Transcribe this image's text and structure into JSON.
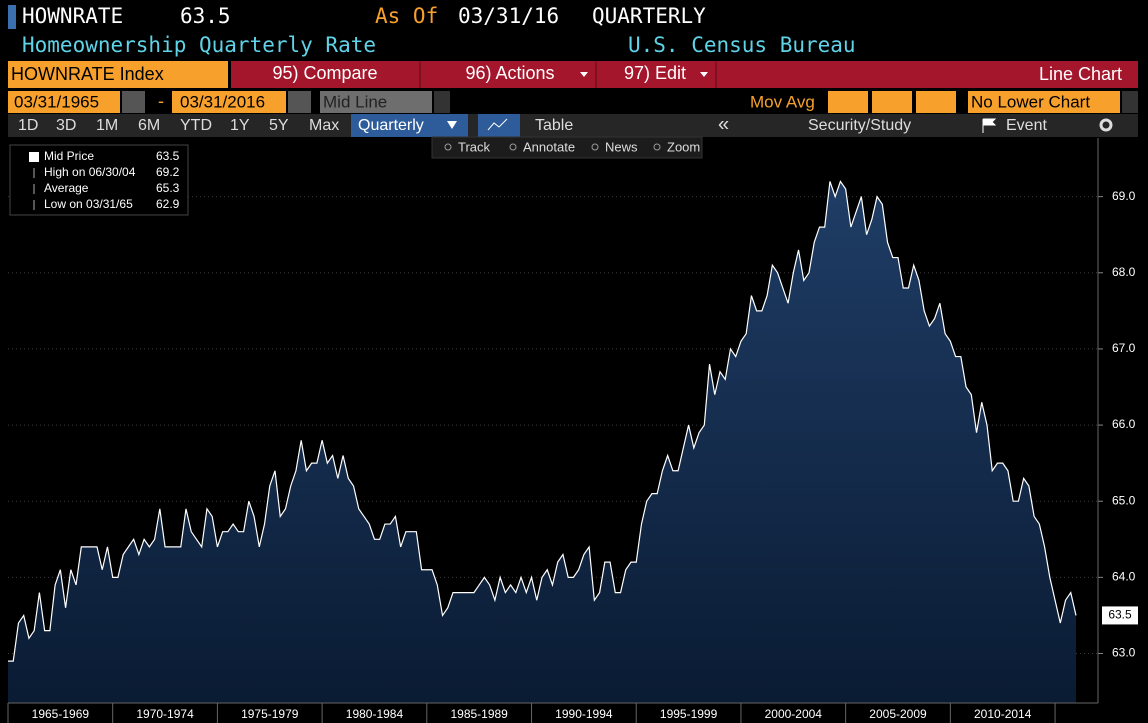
{
  "header": {
    "ticker": "HOWNRATE",
    "price": 63.5,
    "as_of_label": "As Of",
    "as_of_date": "03/31/16",
    "frequency": "QUARTERLY",
    "description": "Homeownership Quarterly Rate",
    "source": "U.S. Census Bureau"
  },
  "toolbar": {
    "security": "HOWNRATE Index",
    "compare": "95) Compare",
    "actions": "96) Actions",
    "edit": "97) Edit",
    "chart_type": "Line Chart",
    "start_date": "03/31/1965",
    "dash": "-",
    "end_date": "03/31/2016",
    "line_mode": "Mid Line",
    "mov_avg": "Mov Avg",
    "lower_chart": "No Lower Chart"
  },
  "periods": [
    "1D",
    "3D",
    "1M",
    "6M",
    "YTD",
    "1Y",
    "5Y",
    "Max"
  ],
  "frequency_button": "Quarterly",
  "table_button": "Table",
  "security_study": "Security/Study",
  "event": "Event",
  "chart_tools": [
    "Track",
    "Annotate",
    "News",
    "Zoom"
  ],
  "legend": [
    {
      "label": "Mid Price",
      "value": 63.5
    },
    {
      "label": "High on 06/30/04",
      "value": 69.2
    },
    {
      "label": "Average",
      "value": 65.3
    },
    {
      "label": "Low on 03/31/65",
      "value": 62.9
    }
  ],
  "chart_data": {
    "type": "area",
    "color": "#ffffff",
    "x_band_labels": [
      "1965-1969",
      "1970-1974",
      "1975-1979",
      "1980-1984",
      "1985-1989",
      "1990-1994",
      "1995-1999",
      "2000-2004",
      "2005-2009",
      "2010-2014"
    ],
    "values": [
      62.9,
      62.9,
      63.4,
      63.5,
      63.2,
      63.3,
      63.8,
      63.3,
      63.3,
      63.9,
      64.1,
      63.6,
      64.1,
      63.9,
      64.4,
      64.4,
      64.4,
      64.4,
      64.1,
      64.4,
      64.0,
      64.0,
      64.3,
      64.4,
      64.5,
      64.3,
      64.5,
      64.4,
      64.5,
      64.9,
      64.4,
      64.4,
      64.4,
      64.4,
      64.9,
      64.6,
      64.5,
      64.4,
      64.9,
      64.8,
      64.4,
      64.6,
      64.6,
      64.7,
      64.6,
      64.6,
      65.0,
      64.8,
      64.4,
      64.7,
      65.2,
      65.4,
      64.8,
      64.9,
      65.2,
      65.4,
      65.8,
      65.4,
      65.5,
      65.5,
      65.8,
      65.5,
      65.6,
      65.3,
      65.6,
      65.3,
      65.2,
      64.9,
      64.8,
      64.7,
      64.5,
      64.5,
      64.7,
      64.7,
      64.8,
      64.4,
      64.6,
      64.6,
      64.6,
      64.1,
      64.1,
      64.1,
      63.9,
      63.5,
      63.6,
      63.8,
      63.8,
      63.8,
      63.8,
      63.8,
      63.9,
      64.0,
      63.9,
      63.7,
      64.0,
      63.8,
      63.9,
      63.8,
      64.0,
      63.8,
      64.0,
      63.7,
      64.0,
      64.1,
      63.9,
      64.2,
      64.3,
      64.0,
      64.0,
      64.1,
      64.3,
      64.4,
      63.7,
      63.8,
      64.2,
      64.2,
      63.8,
      63.8,
      64.1,
      64.2,
      64.2,
      64.7,
      65.0,
      65.1,
      65.1,
      65.4,
      65.6,
      65.4,
      65.4,
      65.7,
      66.0,
      65.7,
      65.9,
      66.0,
      66.8,
      66.4,
      66.7,
      66.6,
      67.0,
      66.9,
      67.1,
      67.2,
      67.7,
      67.5,
      67.5,
      67.7,
      68.1,
      68.0,
      67.8,
      67.6,
      68.0,
      68.3,
      67.9,
      68.0,
      68.4,
      68.6,
      68.6,
      69.2,
      69.0,
      69.2,
      69.1,
      68.6,
      68.8,
      69.0,
      68.5,
      68.7,
      69.0,
      68.9,
      68.4,
      68.2,
      68.2,
      67.8,
      67.8,
      68.1,
      67.9,
      67.5,
      67.3,
      67.4,
      67.6,
      67.2,
      67.1,
      66.9,
      66.9,
      66.5,
      66.4,
      65.9,
      66.3,
      66.0,
      65.4,
      65.5,
      65.5,
      65.4,
      65.0,
      65.0,
      65.3,
      65.2,
      64.8,
      64.7,
      64.4,
      64.0,
      63.7,
      63.4,
      63.7,
      63.8,
      63.5
    ],
    "ylim": [
      62.35,
      69.77
    ],
    "yticks": [
      {
        "value": 63,
        "label": "63.0"
      },
      {
        "value": 64,
        "label": "64.0"
      },
      {
        "value": 65,
        "label": "65.0"
      },
      {
        "value": 66,
        "label": "66.0"
      },
      {
        "value": 67,
        "label": "67.0"
      },
      {
        "value": 68,
        "label": "68.0"
      },
      {
        "value": 69,
        "label": "69.0"
      }
    ],
    "grid": true
  }
}
